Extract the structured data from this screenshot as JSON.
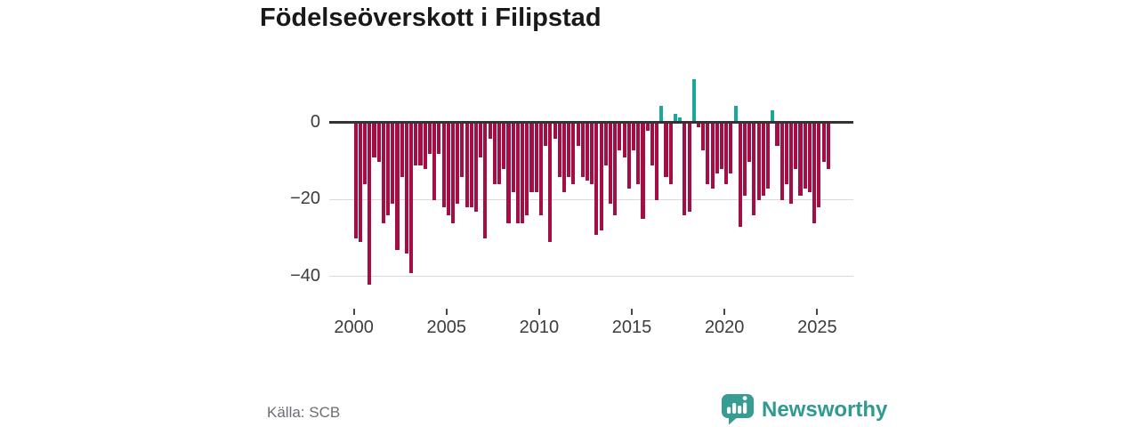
{
  "title": "Födelseöverskott i Filipstad",
  "source": "Källa: SCB",
  "branding": {
    "name": "Newsworthy",
    "logo_icon": "speech-bubble-bar-chart",
    "color": "#2e9a90"
  },
  "colors": {
    "bar_negative": "#a50d45",
    "bar_positive": "#18a79b",
    "zero_axis": "#333333",
    "gridline": "#d9d9de",
    "axis_text": "#3c3c3c",
    "title_text": "#191919",
    "source_text": "#6d6d76"
  },
  "chart_data": {
    "type": "bar",
    "title": "Födelseöverskott i Filipstad",
    "period": "quarterly",
    "start": "2000-Q1",
    "end": "2025-Q3",
    "values": [
      -30,
      -31,
      -16,
      -42,
      -9,
      -10,
      -26,
      -24,
      -21,
      -33,
      -14,
      -34,
      -39,
      -11,
      -11,
      -12,
      -8,
      -20,
      -8,
      -22,
      -24,
      -26,
      -21,
      -14,
      -22,
      -22,
      -23,
      -9,
      -30,
      -4,
      -16,
      -16,
      -12,
      -26,
      -18,
      -26,
      -26,
      -24,
      -18,
      -18,
      -24,
      -6,
      -31,
      -4,
      -14,
      -18,
      -14,
      -16,
      -6,
      -14,
      -15,
      -16,
      -29,
      -28,
      -11,
      -21,
      -24,
      -7,
      -9,
      -17,
      -7,
      -16,
      -25,
      -2,
      -11,
      -20,
      4,
      -14,
      -16,
      2,
      1,
      -24,
      -23,
      11,
      -1,
      -7,
      -16,
      -17,
      -13,
      -12,
      -16,
      -13,
      4,
      -27,
      -19,
      -10,
      -24,
      -20,
      -19,
      -17,
      3,
      -6,
      -20,
      -16,
      -21,
      -12,
      -19,
      -17,
      -18,
      -26,
      -22,
      -10,
      -12
    ],
    "xlabel": "",
    "ylabel": "",
    "ylim": [
      -45,
      13
    ],
    "yticks": [
      0,
      -20,
      -40
    ],
    "ytick_labels": [
      "0",
      "−20",
      "−40"
    ],
    "xtick_years": [
      2000,
      2005,
      2010,
      2015,
      2020,
      2025
    ],
    "xtick_labels": [
      "2000",
      "2005",
      "2010",
      "2015",
      "2020",
      "2025"
    ],
    "grid": "horizontal-light",
    "legend": "none",
    "bar_color_negative": "#a50d45",
    "bar_color_positive": "#18a79b"
  }
}
